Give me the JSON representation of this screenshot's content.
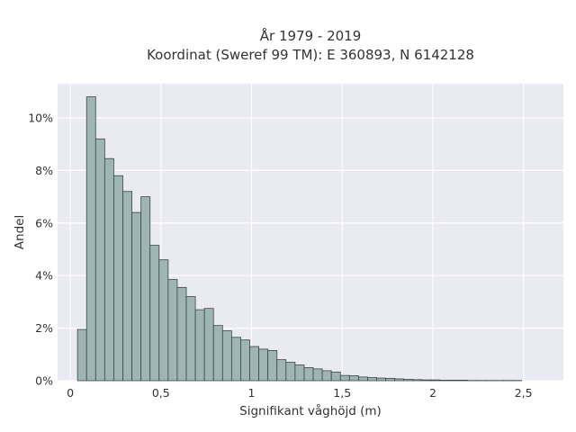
{
  "chart_data": {
    "type": "bar",
    "title_lines": [
      "År 1979 - 2019",
      "Koordinat (Sweref 99 TM): E 360893, N 6142128"
    ],
    "xlabel": "Signifikant våghöjd (m)",
    "ylabel": "Andel",
    "xlim": [
      -0.07,
      2.72
    ],
    "ylim": [
      0,
      11.3
    ],
    "x_ticks": [
      0,
      0.5,
      1,
      1.5,
      2,
      2.5
    ],
    "x_tick_labels": [
      "0",
      "0,5",
      "1",
      "1,5",
      "2",
      "2,5"
    ],
    "y_ticks": [
      0,
      2,
      4,
      6,
      8,
      10
    ],
    "y_tick_labels": [
      "0%",
      "2%",
      "4%",
      "6%",
      "8%",
      "10%"
    ],
    "grid": true,
    "bin_width": 0.05,
    "bin_starts": [
      0.04,
      0.09,
      0.14,
      0.19,
      0.24,
      0.29,
      0.34,
      0.39,
      0.44,
      0.49,
      0.54,
      0.59,
      0.64,
      0.69,
      0.74,
      0.79,
      0.84,
      0.89,
      0.94,
      0.99,
      1.04,
      1.09,
      1.14,
      1.19,
      1.24,
      1.29,
      1.34,
      1.39,
      1.44,
      1.49,
      1.54,
      1.59,
      1.64,
      1.69,
      1.74,
      1.79,
      1.84,
      1.89,
      1.94,
      1.99,
      2.04,
      2.09,
      2.14,
      2.19,
      2.24,
      2.29,
      2.34,
      2.39,
      2.44
    ],
    "values": [
      1.95,
      10.8,
      9.2,
      8.45,
      7.8,
      7.2,
      6.4,
      7.0,
      5.15,
      4.6,
      3.85,
      3.55,
      3.2,
      2.7,
      2.75,
      2.1,
      1.9,
      1.65,
      1.55,
      1.3,
      1.2,
      1.15,
      0.8,
      0.7,
      0.6,
      0.5,
      0.45,
      0.38,
      0.33,
      0.2,
      0.19,
      0.14,
      0.12,
      0.1,
      0.09,
      0.07,
      0.05,
      0.04,
      0.03,
      0.03,
      0.02,
      0.02,
      0.02,
      0.01,
      0.01,
      0.01,
      0.01,
      0.01,
      0.01
    ],
    "colors": {
      "bar_fill": "#9fb5b5",
      "bar_edge": "#3a4747",
      "plot_bg": "#eaeaf2",
      "grid": "#ffffff"
    }
  }
}
